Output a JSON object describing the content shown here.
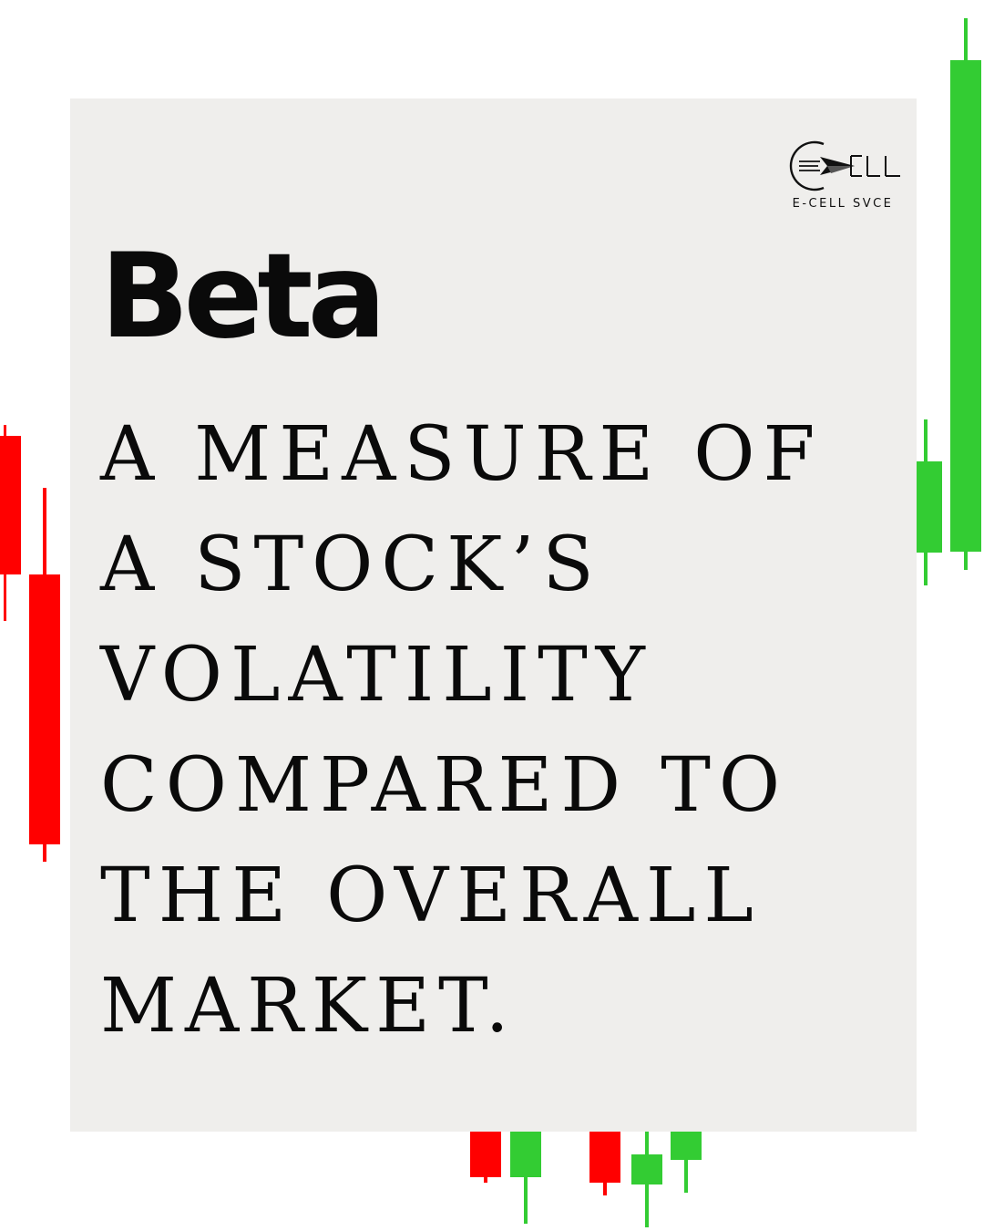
{
  "colors": {
    "page_background": "#ffffff",
    "card_background": "#efeeec",
    "text": "#0a0a0a",
    "candle_up": "#33cc33",
    "candle_down": "#ff0000"
  },
  "logo": {
    "mark": "ELL",
    "caption": "E-CELL SVCE",
    "icon": "paper-plane-icon"
  },
  "heading": "Beta",
  "definition_lines": [
    "A MEASURE OF",
    "A STOCK’S",
    "VOLATILITY",
    "COMPARED TO",
    "THE OVERALL",
    "MARKET."
  ]
}
